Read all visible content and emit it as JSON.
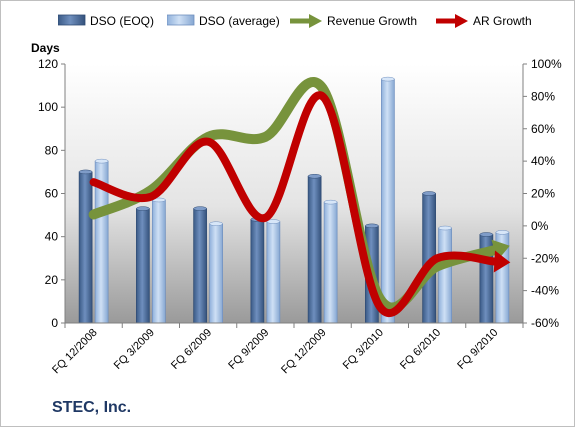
{
  "company": "STEC, Inc.",
  "chart_data": {
    "type": "bar",
    "categories": [
      "FQ 12/2008",
      "FQ 3/2009",
      "FQ 6/2009",
      "FQ 9/2009",
      "FQ 12/2009",
      "FQ 3/2010",
      "FQ 6/2010",
      "FQ 9/2010"
    ],
    "series": [
      {
        "name": "DSO (EOQ)",
        "type": "bar",
        "axis": "left",
        "values": [
          70,
          53,
          53,
          48,
          68,
          45,
          60,
          41
        ],
        "color": "#4f6d9a"
      },
      {
        "name": "DSO (average)",
        "type": "bar",
        "axis": "left",
        "values": [
          75,
          57,
          46,
          47,
          56,
          113,
          44,
          42
        ],
        "color": "#a9c4e6"
      },
      {
        "name": "Revenue Growth",
        "type": "line",
        "axis": "right",
        "values": [
          7,
          22,
          55,
          55,
          85,
          -45,
          -25,
          -15
        ],
        "color": "#77933c"
      },
      {
        "name": "AR Growth",
        "type": "line",
        "axis": "right",
        "values": [
          27,
          18,
          52,
          5,
          80,
          -50,
          -20,
          -22
        ],
        "color": "#c00000"
      }
    ],
    "ylabel": "Days",
    "ylim": [
      0,
      120
    ],
    "yticks": [
      0,
      20,
      40,
      60,
      80,
      100,
      120
    ],
    "y2lim": [
      -60,
      100
    ],
    "y2ticks": [
      "-60%",
      "-40%",
      "-20%",
      "0%",
      "20%",
      "40%",
      "60%",
      "80%",
      "100%"
    ],
    "legend_position": "top",
    "grid": false
  }
}
